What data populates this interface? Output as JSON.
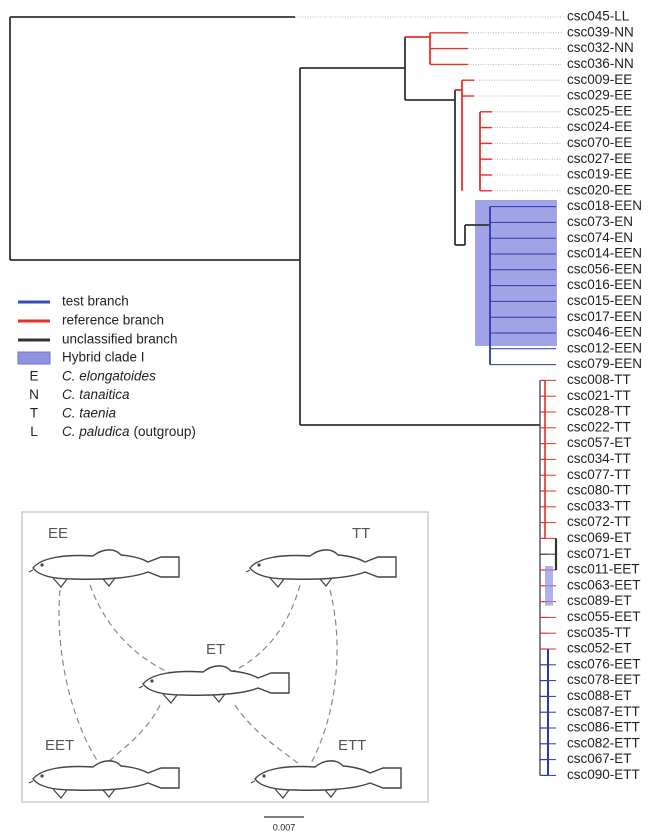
{
  "tree": {
    "tips": [
      "csc045-LL",
      "csc039-NN",
      "csc032-NN",
      "csc036-NN",
      "csc009-EE",
      "csc029-EE",
      "csc025-EE",
      "csc024-EE",
      "csc070-EE",
      "csc027-EE",
      "csc019-EE",
      "csc020-EE",
      "csc018-EEN",
      "csc073-EN",
      "csc074-EN",
      "csc014-EEN",
      "csc056-EEN",
      "csc016-EEN",
      "csc015-EEN",
      "csc017-EEN",
      "csc046-EEN",
      "csc012-EEN",
      "csc079-EEN",
      "csc008-TT",
      "csc021-TT",
      "csc028-TT",
      "csc022-TT",
      "csc057-ET",
      "csc034-TT",
      "csc077-TT",
      "csc080-TT",
      "csc033-TT",
      "csc072-TT",
      "csc069-ET",
      "csc071-ET",
      "csc011-EET",
      "csc063-EET",
      "csc089-ET",
      "csc055-EET",
      "csc035-TT",
      "csc052-ET",
      "csc076-EET",
      "csc078-EET",
      "csc088-ET",
      "csc087-ETT",
      "csc086-ETT",
      "csc082-ETT",
      "csc067-ET",
      "csc090-ETT"
    ],
    "scale_bar": "0.007"
  },
  "legend": {
    "items": [
      "test branch",
      "reference branch",
      "unclassified branch",
      "Hybrid clade I"
    ],
    "species": [
      {
        "code": "E",
        "name": "C. elongatoides"
      },
      {
        "code": "N",
        "name": "C. tanaitica"
      },
      {
        "code": "T",
        "name": "C. taenia"
      },
      {
        "code": "L",
        "name": "C. paludica",
        "note": "(outgroup)"
      }
    ]
  },
  "diagram": {
    "labels": [
      "EE",
      "TT",
      "ET",
      "EET",
      "ETT"
    ]
  }
}
